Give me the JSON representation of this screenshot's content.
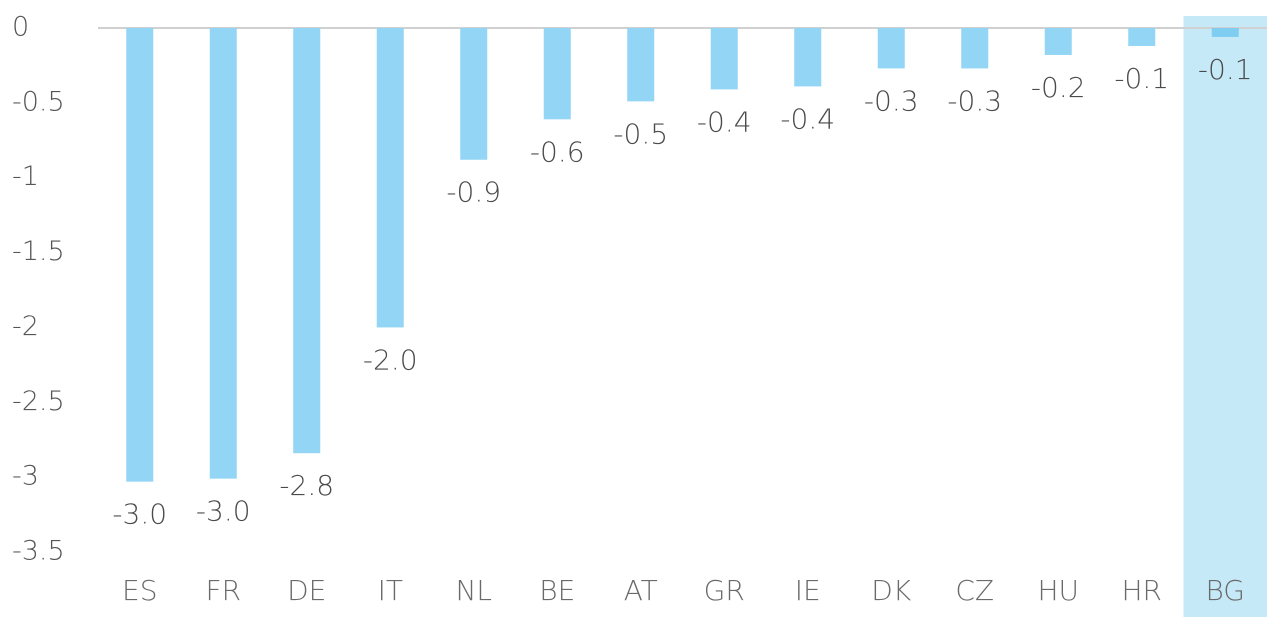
{
  "chart_data": {
    "type": "bar",
    "categories": [
      "ES",
      "FR",
      "DE",
      "IT",
      "NL",
      "BE",
      "AT",
      "GR",
      "IE",
      "DK",
      "CZ",
      "HU",
      "HR",
      "BG"
    ],
    "values": [
      -3.03,
      -3.01,
      -2.84,
      -2.0,
      -0.88,
      -0.61,
      -0.49,
      -0.41,
      -0.39,
      -0.27,
      -0.27,
      -0.18,
      -0.12,
      -0.06
    ],
    "data_labels": [
      "-3.0",
      "-3.0",
      "-2.8",
      "-2.0",
      "-0.9",
      "-0.6",
      "-0.5",
      "-0.4",
      "-0.4",
      "-0.3",
      "-0.3",
      "-0.2",
      "-0.1",
      "-0.1"
    ],
    "y_ticks": [
      0,
      -0.5,
      -1,
      -1.5,
      -2,
      -2.5,
      -3,
      -3.5
    ],
    "y_tick_labels": [
      "0",
      "-0.5",
      "-1",
      "-1.5",
      "-2",
      "-2.5",
      "-3",
      "-3.5"
    ],
    "ylim": [
      -3.5,
      0
    ],
    "highlight_category": "BG",
    "grid": false,
    "colors": {
      "bar": "#92d5f5",
      "highlight_bar": "#7fcdf1",
      "highlight_background": "#c6e9f8",
      "axis_line": "#d0d0d0"
    }
  }
}
